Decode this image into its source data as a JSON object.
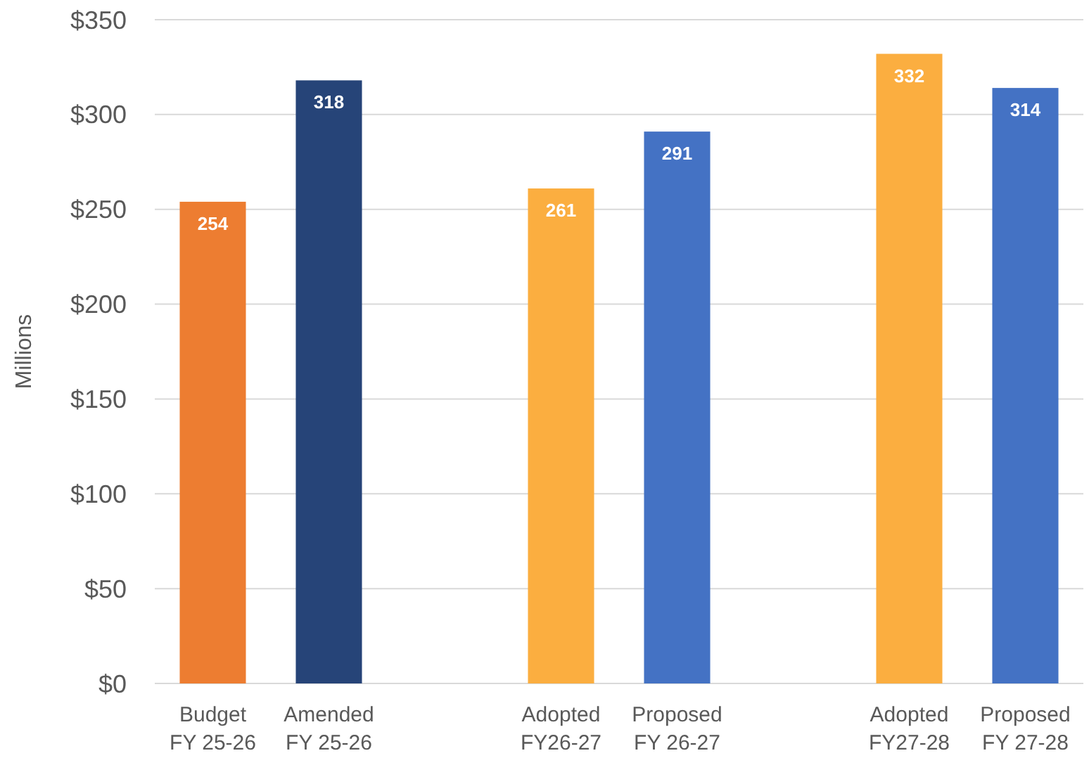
{
  "chart_data": {
    "type": "bar",
    "ylabel": "Millions",
    "categories": [
      "Budget\nFY 25-26",
      "Amended\nFY 25-26",
      null,
      "Adopted\nFY26-27",
      "Proposed\nFY 26-27",
      null,
      "Adopted\nFY27-28",
      "Proposed\nFY 27-28"
    ],
    "values": [
      254,
      318,
      null,
      261,
      291,
      null,
      332,
      314
    ],
    "colors": [
      "#ed7d31",
      "#264478",
      null,
      "#fbae40",
      "#4472c4",
      null,
      "#fbae40",
      "#4472c4"
    ],
    "ylim": [
      0,
      350
    ],
    "yticks": [
      {
        "value": 0,
        "label": "$0"
      },
      {
        "value": 50,
        "label": "$50"
      },
      {
        "value": 100,
        "label": "$100"
      },
      {
        "value": 150,
        "label": "$150"
      },
      {
        "value": 200,
        "label": "$200"
      },
      {
        "value": 250,
        "label": "$250"
      },
      {
        "value": 300,
        "label": "$300"
      },
      {
        "value": 350,
        "label": "$350"
      }
    ],
    "grid": true,
    "data_labels": true
  }
}
